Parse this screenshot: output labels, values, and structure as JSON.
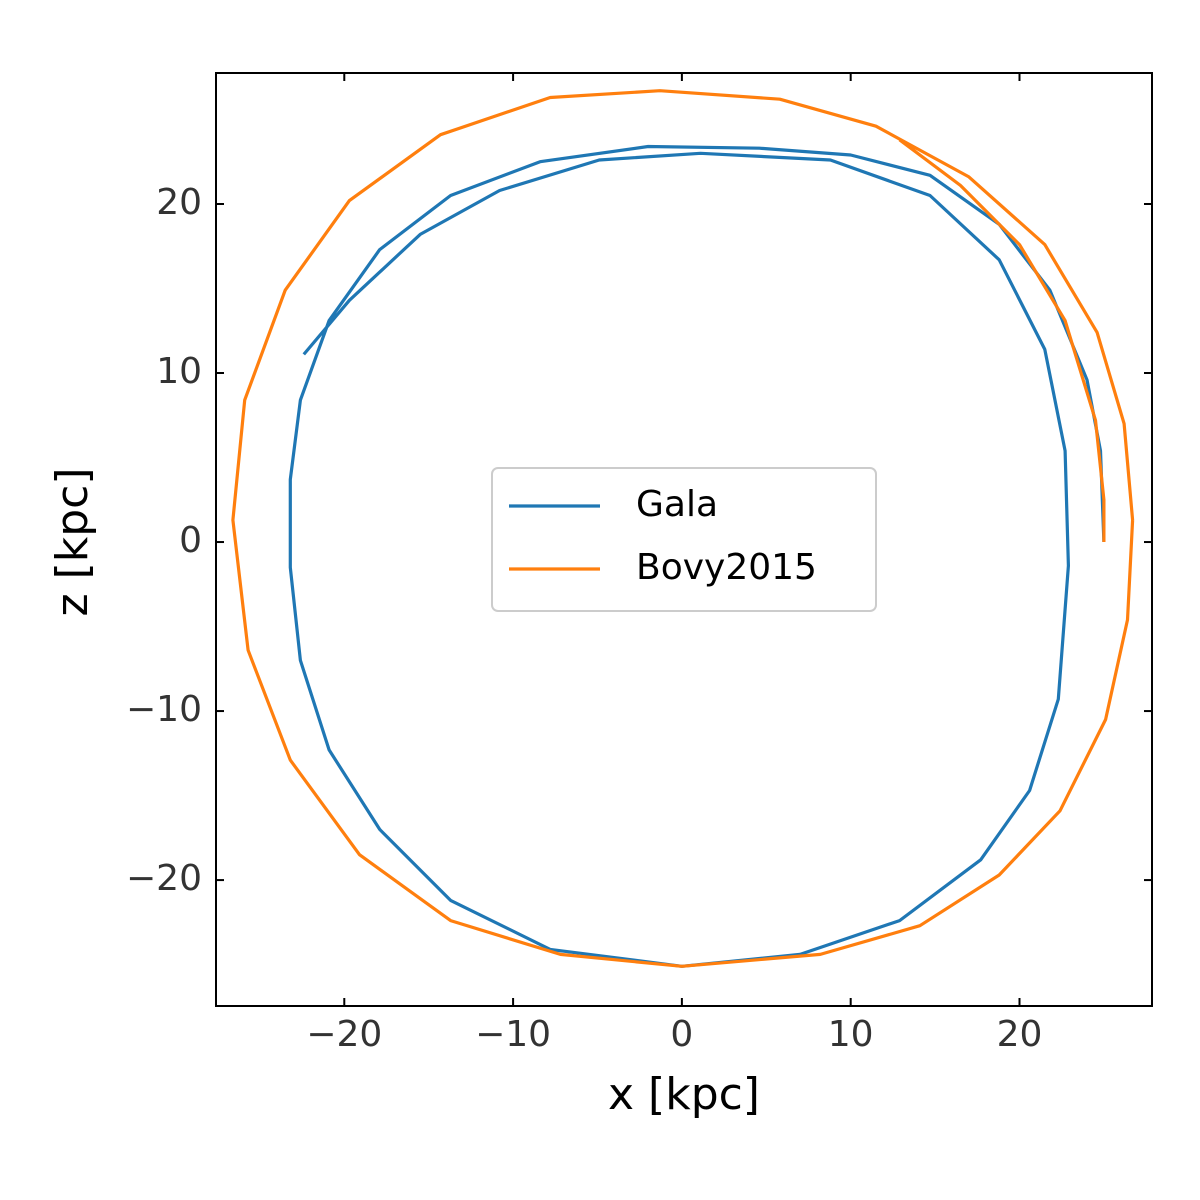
{
  "chart_data": {
    "type": "line",
    "xlabel": "x [kpc]",
    "ylabel": "z [kpc]",
    "xlim": [
      -27.6,
      27.85
    ],
    "ylim": [
      -27.45,
      27.75
    ],
    "xticks": [
      {
        "value": -20,
        "label": "−20"
      },
      {
        "value": -10,
        "label": "−10"
      },
      0,
      10,
      20
    ],
    "yticks": [
      {
        "value": -20,
        "label": "−20"
      },
      {
        "value": -10,
        "label": "−10"
      },
      0,
      10,
      20
    ],
    "legend": "center",
    "series": [
      {
        "name": "Gala",
        "color": "#1f77b4",
        "x": [
          25,
          24.8,
          24,
          21.8,
          18.8,
          14.7,
          10,
          4.6,
          -2,
          -8.4,
          -13.7,
          -17.9,
          -20.9,
          -22.6,
          -23.2,
          -23.2,
          -22.6,
          -20.9,
          -17.9,
          -13.7,
          -7.8,
          0,
          7,
          12.9,
          17.7,
          20.6,
          22.3,
          22.9,
          22.7,
          21.5,
          18.8,
          14.7,
          8.8,
          1.1,
          -4.9,
          -10.8,
          -15.5,
          -19.7,
          -22.4
        ],
        "values": [
          0,
          5.4,
          9.6,
          14.9,
          18.8,
          21.7,
          22.9,
          23.3,
          23.4,
          22.5,
          20.5,
          17.3,
          13.1,
          8.4,
          3.7,
          -1.5,
          -7,
          -12.3,
          -17,
          -21.2,
          -24.1,
          -25.1,
          -24.4,
          -22.4,
          -18.8,
          -14.7,
          -9.3,
          -1.4,
          5.4,
          11.4,
          16.7,
          20.5,
          22.6,
          23,
          22.6,
          20.8,
          18.2,
          14.3,
          11.1
        ]
      },
      {
        "name": "Bovy2015",
        "color": "#ff7f0e",
        "x": [
          26.7,
          26.4,
          25.1,
          22.4,
          18.8,
          14.1,
          8.2,
          0,
          -7.2,
          -13.7,
          -19.1,
          -23.2,
          -25.7,
          -26.6,
          -25.9,
          -23.5,
          -19.7,
          -14.3,
          -7.8,
          -1.3,
          5.8,
          11.5,
          17,
          21.5,
          24.6,
          26.2,
          26.7,
          null,
          12.9,
          16.5,
          20,
          22.7,
          24.5,
          25,
          25
        ],
        "values": [
          1.3,
          -4.6,
          -10.5,
          -15.9,
          -19.7,
          -22.7,
          -24.4,
          -25.1,
          -24.4,
          -22.4,
          -18.5,
          -12.9,
          -6.4,
          1.3,
          8.4,
          14.9,
          20.2,
          24.1,
          26.3,
          26.7,
          26.2,
          24.6,
          21.6,
          17.6,
          12.4,
          7,
          1.3,
          null,
          23.8,
          21.1,
          17.6,
          13.1,
          7.2,
          2.5,
          0
        ]
      }
    ]
  }
}
